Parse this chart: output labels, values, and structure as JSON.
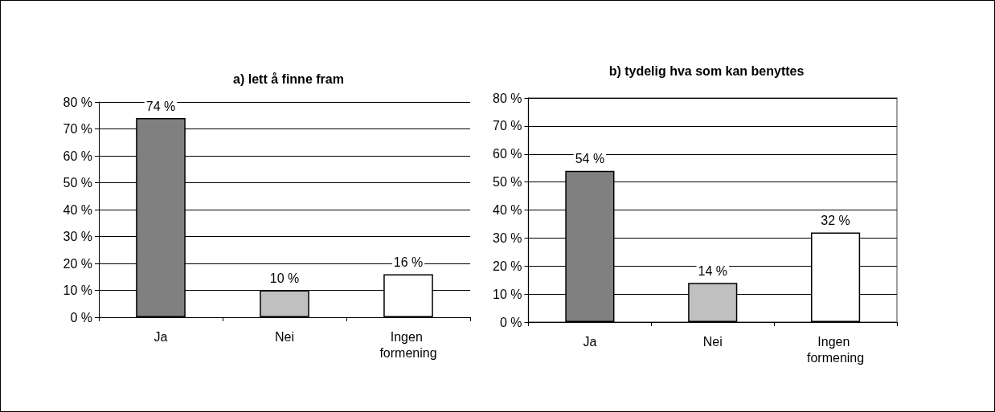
{
  "chart_data": [
    {
      "type": "bar",
      "title": "a) lett å finne fram",
      "categories": [
        "Ja",
        "Nei",
        "Ingen formening"
      ],
      "values": [
        74,
        10,
        16
      ],
      "colors": [
        "#808080",
        "#c0c0c0",
        "#ffffff"
      ],
      "value_labels": [
        "74 %",
        "10 %",
        "16 %"
      ],
      "ylim": [
        0,
        80
      ],
      "yticks": [
        {
          "value": 0,
          "label": "0 %"
        },
        {
          "value": 10,
          "label": "10 %"
        },
        {
          "value": 20,
          "label": "20 %"
        },
        {
          "value": 30,
          "label": "30 %"
        },
        {
          "value": 40,
          "label": "40 %"
        },
        {
          "value": 50,
          "label": "50 %"
        },
        {
          "value": 60,
          "label": "60 %"
        },
        {
          "value": 70,
          "label": "70 %"
        },
        {
          "value": 80,
          "label": "80 %"
        }
      ],
      "grid": "y"
    },
    {
      "type": "bar",
      "title": "b) tydelig hva som kan benyttes",
      "categories": [
        "Ja",
        "Nei",
        "Ingen formening"
      ],
      "values": [
        54,
        14,
        32
      ],
      "colors": [
        "#808080",
        "#c0c0c0",
        "#ffffff"
      ],
      "value_labels": [
        "54 %",
        "14 %",
        "32 %"
      ],
      "ylim": [
        0,
        80
      ],
      "yticks": [
        {
          "value": 0,
          "label": "0 %"
        },
        {
          "value": 10,
          "label": "10 %"
        },
        {
          "value": 20,
          "label": "20 %"
        },
        {
          "value": 30,
          "label": "30 %"
        },
        {
          "value": 40,
          "label": "40 %"
        },
        {
          "value": 50,
          "label": "50 %"
        },
        {
          "value": 60,
          "label": "60 %"
        },
        {
          "value": 70,
          "label": "70 %"
        },
        {
          "value": 80,
          "label": "80 %"
        }
      ],
      "grid": "y"
    }
  ]
}
